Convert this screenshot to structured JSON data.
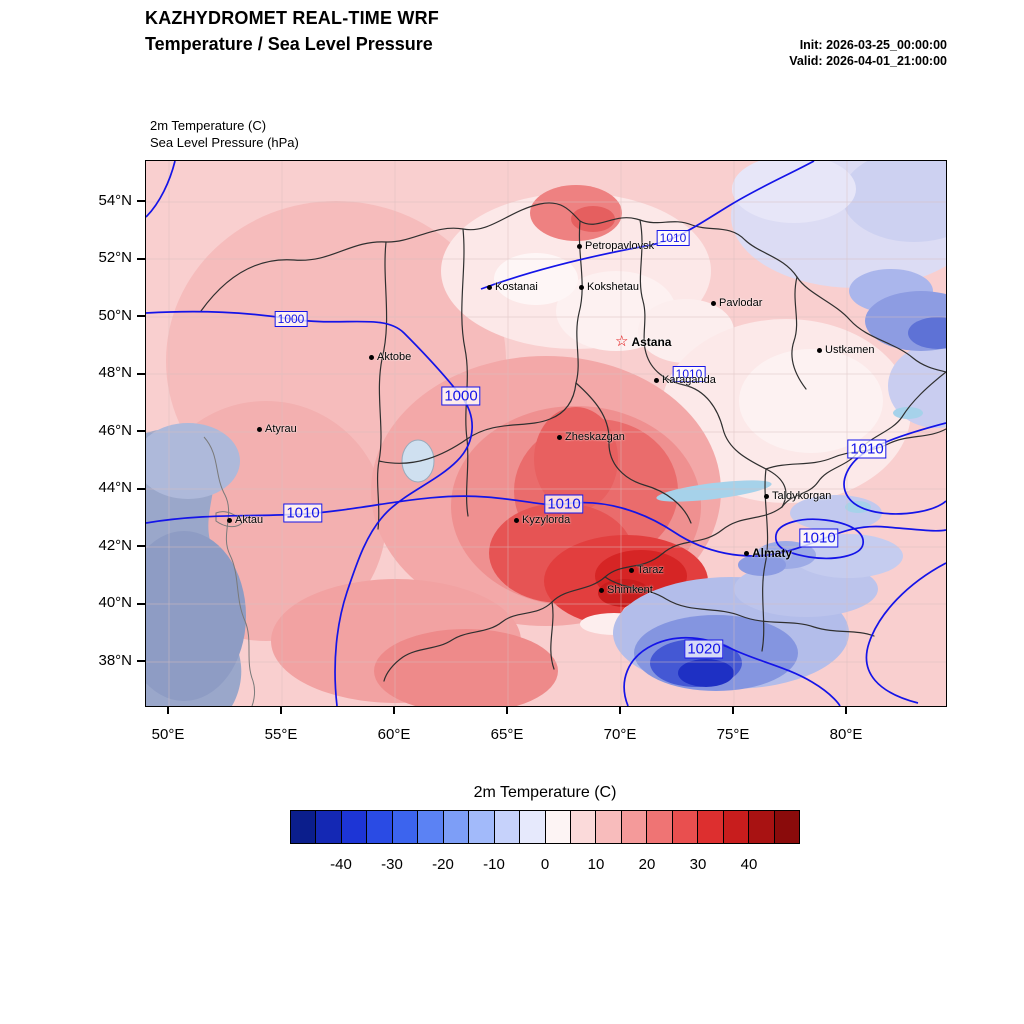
{
  "header": {
    "title": "KAZHYDROMET REAL-TIME WRF",
    "subtitle": "Temperature / Sea Level Pressure",
    "init_label": "Init: 2026-03-25_00:00:00",
    "valid_label": "Valid: 2026-04-01_21:00:00"
  },
  "map": {
    "field_label_1": "2m Temperature   (C)",
    "field_label_2": "Sea Level Pressure   (hPa)",
    "lat_ticks": [
      "54°N",
      "52°N",
      "50°N",
      "48°N",
      "46°N",
      "44°N",
      "42°N",
      "40°N",
      "38°N"
    ],
    "lon_ticks": [
      "50°E",
      "55°E",
      "60°E",
      "65°E",
      "70°E",
      "75°E",
      "80°E"
    ],
    "cities": [
      {
        "name": "Petropavlovsk"
      },
      {
        "name": "Kostanai"
      },
      {
        "name": "Kokshetau"
      },
      {
        "name": "Pavlodar"
      },
      {
        "name": "Astana",
        "capital": true
      },
      {
        "name": "Aktobe"
      },
      {
        "name": "Ustkamen"
      },
      {
        "name": "Karaganda"
      },
      {
        "name": "Atyrau"
      },
      {
        "name": "Zheskazgan"
      },
      {
        "name": "Taldykorgan"
      },
      {
        "name": "Aktau"
      },
      {
        "name": "Kyzylorda"
      },
      {
        "name": "Almaty",
        "bold": true
      },
      {
        "name": "Taraz"
      },
      {
        "name": "Shimkent"
      }
    ],
    "isobar_labels": [
      "1010",
      "1000",
      "1010",
      "1000",
      "1010",
      "1010",
      "1010",
      "1010",
      "1020"
    ]
  },
  "icons": {
    "capital_star": "☆"
  },
  "colors": {
    "isobar": "#1414e8",
    "region_border": "#2f2f2f",
    "capital_star": "#e00000",
    "land_base": "#f9cfcf",
    "caspian_sea": "#9aa7ca"
  },
  "colorbar": {
    "title": "2m Temperature  (C)",
    "ticks": [
      "-40",
      "-30",
      "-20",
      "-10",
      "0",
      "10",
      "20",
      "30",
      "40"
    ],
    "colors": [
      "#0b1e8c",
      "#1428b4",
      "#1d35d6",
      "#2a4be4",
      "#3c64ee",
      "#5b82f4",
      "#7d9ef7",
      "#a2bafa",
      "#c6d2fb",
      "#e6e9fc",
      "#fdf4f4",
      "#fbdada",
      "#f8bcbc",
      "#f49a9a",
      "#ef7474",
      "#e94f4f",
      "#dd2f2f",
      "#c81d1d",
      "#a81212",
      "#8a0b0b"
    ]
  }
}
